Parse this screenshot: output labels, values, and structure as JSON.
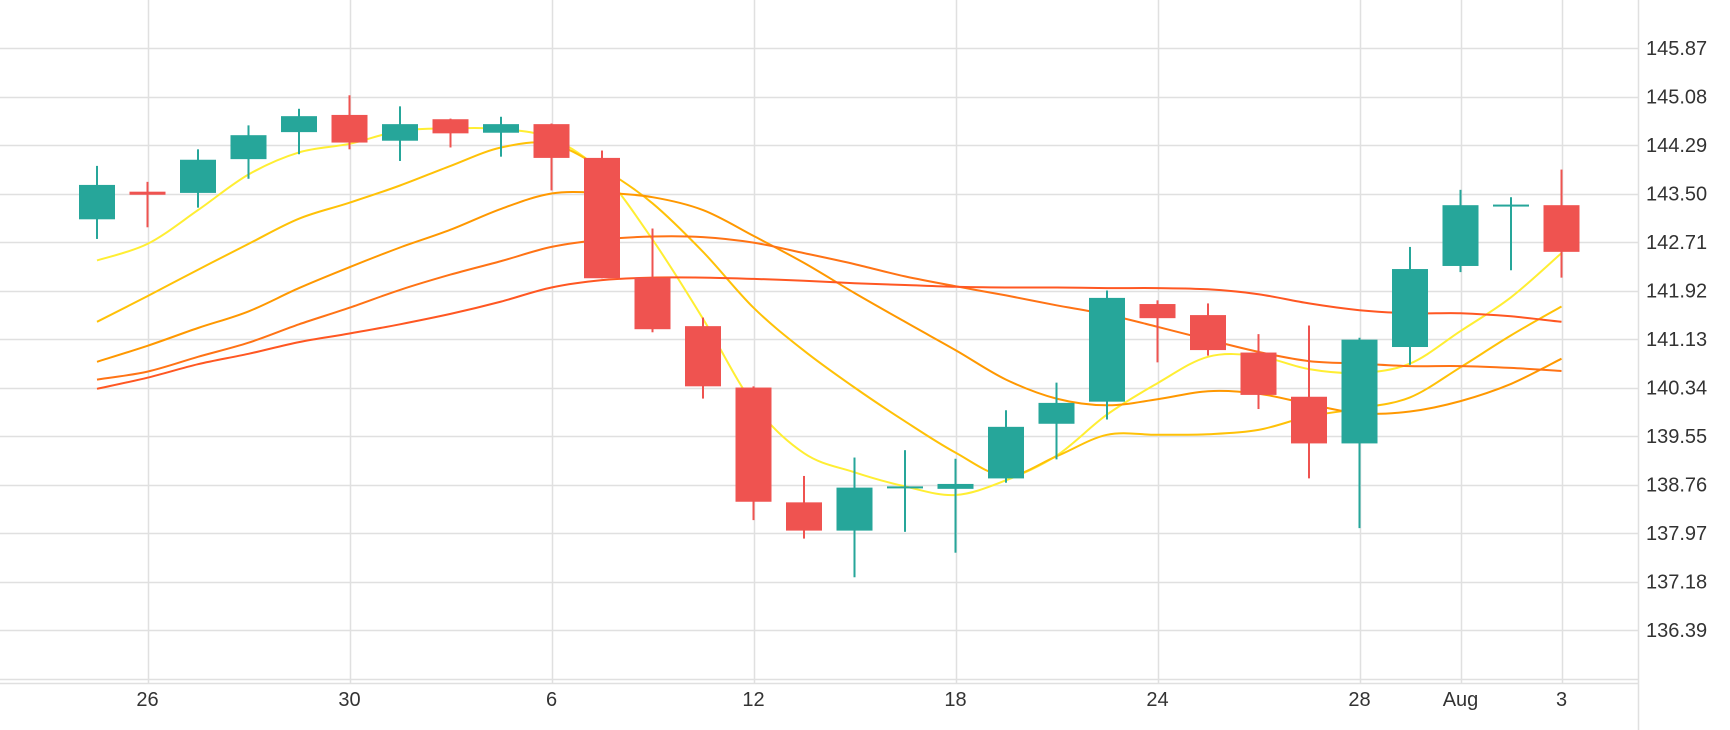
{
  "chart_data": {
    "type": "candlestick",
    "title": "",
    "xlabel": "",
    "ylabel": "",
    "ylim": [
      135.6,
      146.35
    ],
    "grid": true,
    "y_ticks": [
      "136.39",
      "137.18",
      "137.97",
      "138.76",
      "139.55",
      "140.34",
      "141.13",
      "141.92",
      "142.71",
      "143.50",
      "144.29",
      "145.08",
      "145.87"
    ],
    "x_ticks": [
      {
        "label": "26",
        "index": 1
      },
      {
        "label": "30",
        "index": 5
      },
      {
        "label": "6",
        "index": 9
      },
      {
        "label": "12",
        "index": 13
      },
      {
        "label": "18",
        "index": 17
      },
      {
        "label": "24",
        "index": 21
      },
      {
        "label": "28",
        "index": 25
      },
      {
        "label": "Aug",
        "index": 27
      },
      {
        "label": "3",
        "index": 29
      }
    ],
    "colors": {
      "up": "#26a69a",
      "down": "#ef5350",
      "grid": "#e0e0e0"
    },
    "candles": [
      {
        "o": 143.08,
        "h": 143.95,
        "l": 142.76,
        "c": 143.64
      },
      {
        "o": 143.53,
        "h": 143.69,
        "l": 142.95,
        "c": 143.48
      },
      {
        "o": 143.51,
        "h": 144.22,
        "l": 143.27,
        "c": 144.05
      },
      {
        "o": 144.06,
        "h": 144.61,
        "l": 143.74,
        "c": 144.45
      },
      {
        "o": 144.5,
        "h": 144.88,
        "l": 144.14,
        "c": 144.76
      },
      {
        "o": 144.78,
        "h": 145.1,
        "l": 144.22,
        "c": 144.33
      },
      {
        "o": 144.36,
        "h": 144.92,
        "l": 144.03,
        "c": 144.63
      },
      {
        "o": 144.71,
        "h": 144.72,
        "l": 144.25,
        "c": 144.48
      },
      {
        "o": 144.49,
        "h": 144.75,
        "l": 144.1,
        "c": 144.63
      },
      {
        "o": 144.63,
        "h": 144.64,
        "l": 143.55,
        "c": 144.08
      },
      {
        "o": 144.08,
        "h": 144.2,
        "l": 142.12,
        "c": 142.12
      },
      {
        "o": 142.13,
        "h": 142.93,
        "l": 141.24,
        "c": 141.29
      },
      {
        "o": 141.34,
        "h": 141.48,
        "l": 140.16,
        "c": 140.36
      },
      {
        "o": 140.34,
        "h": 140.36,
        "l": 138.18,
        "c": 138.48
      },
      {
        "o": 138.47,
        "h": 138.9,
        "l": 137.88,
        "c": 138.01
      },
      {
        "o": 138.01,
        "h": 139.2,
        "l": 137.25,
        "c": 138.71
      },
      {
        "o": 138.71,
        "h": 139.32,
        "l": 137.99,
        "c": 138.73
      },
      {
        "o": 138.69,
        "h": 139.18,
        "l": 137.65,
        "c": 138.77
      },
      {
        "o": 138.86,
        "h": 139.97,
        "l": 138.79,
        "c": 139.7
      },
      {
        "o": 139.75,
        "h": 140.42,
        "l": 139.17,
        "c": 140.09
      },
      {
        "o": 140.11,
        "h": 141.92,
        "l": 139.82,
        "c": 141.8
      },
      {
        "o": 141.7,
        "h": 141.76,
        "l": 140.75,
        "c": 141.47
      },
      {
        "o": 141.52,
        "h": 141.71,
        "l": 140.86,
        "c": 140.95
      },
      {
        "o": 140.91,
        "h": 141.21,
        "l": 139.99,
        "c": 140.22
      },
      {
        "o": 140.19,
        "h": 141.35,
        "l": 138.86,
        "c": 139.43
      },
      {
        "o": 139.43,
        "h": 141.15,
        "l": 138.05,
        "c": 141.12
      },
      {
        "o": 141.0,
        "h": 142.63,
        "l": 140.71,
        "c": 142.27
      },
      {
        "o": 142.32,
        "h": 143.56,
        "l": 142.22,
        "c": 143.31
      },
      {
        "o": 143.32,
        "h": 143.44,
        "l": 142.25,
        "c": 143.32
      },
      {
        "o": 143.31,
        "h": 143.89,
        "l": 142.13,
        "c": 142.55
      }
    ],
    "series": [
      {
        "color": "#ffee33",
        "values": [
          142.41,
          142.68,
          143.23,
          143.81,
          144.17,
          144.31,
          144.52,
          144.56,
          144.55,
          144.4,
          143.84,
          142.75,
          141.46,
          140.07,
          139.27,
          138.96,
          138.73,
          138.59,
          138.83,
          139.23,
          139.9,
          140.41,
          140.84,
          140.85,
          140.64,
          140.58,
          140.73,
          141.26,
          141.81,
          142.53
        ]
      },
      {
        "color": "#ffc107",
        "values": [
          141.41,
          141.83,
          142.26,
          142.68,
          143.09,
          143.35,
          143.63,
          143.95,
          144.25,
          144.31,
          143.91,
          143.34,
          142.55,
          141.64,
          140.94,
          140.34,
          139.79,
          139.28,
          138.9,
          139.22,
          139.57,
          139.57,
          139.58,
          139.65,
          139.87,
          140.0,
          140.18,
          140.67,
          141.19,
          141.66
        ]
      },
      {
        "color": "#ff9800",
        "values": [
          140.76,
          141.02,
          141.31,
          141.58,
          141.96,
          142.3,
          142.62,
          142.91,
          143.25,
          143.5,
          143.51,
          143.44,
          143.23,
          142.81,
          142.37,
          141.88,
          141.41,
          140.95,
          140.47,
          140.16,
          140.05,
          140.15,
          140.28,
          140.24,
          140.07,
          139.92,
          139.95,
          140.12,
          140.4,
          140.81
        ]
      },
      {
        "color": "#ff7315",
        "values": [
          140.47,
          140.6,
          140.84,
          141.07,
          141.37,
          141.64,
          141.93,
          142.18,
          142.4,
          142.63,
          142.75,
          142.8,
          142.79,
          142.7,
          142.53,
          142.35,
          142.15,
          141.99,
          141.84,
          141.68,
          141.53,
          141.33,
          141.12,
          140.92,
          140.77,
          140.73,
          140.69,
          140.69,
          140.66,
          140.61
        ]
      },
      {
        "color": "#ff5722",
        "values": [
          140.32,
          140.5,
          140.72,
          140.89,
          141.08,
          141.22,
          141.37,
          141.54,
          141.74,
          141.97,
          142.09,
          142.13,
          142.13,
          142.11,
          142.08,
          142.04,
          142.01,
          141.98,
          141.97,
          141.97,
          141.96,
          141.96,
          141.94,
          141.86,
          141.71,
          141.6,
          141.55,
          141.55,
          141.5,
          141.41
        ]
      }
    ]
  }
}
